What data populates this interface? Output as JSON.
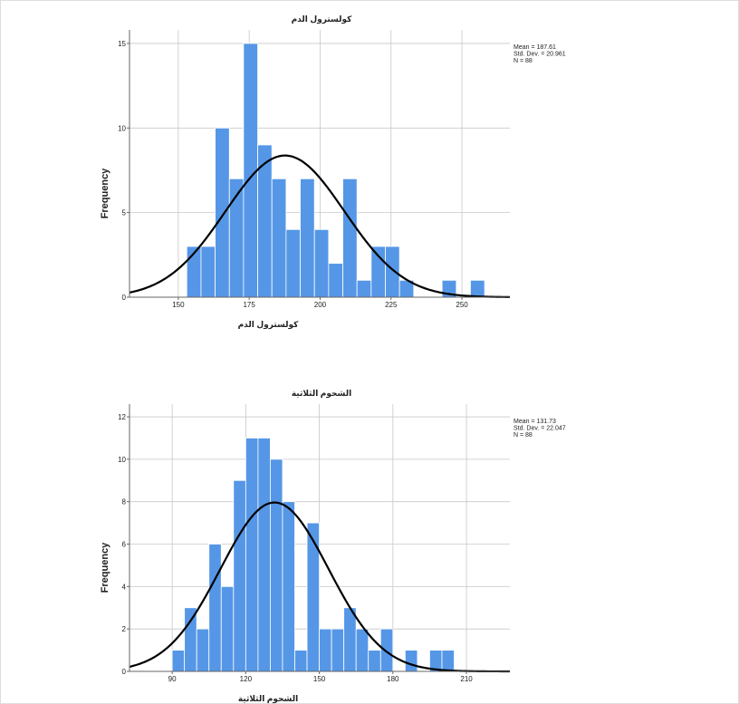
{
  "chart_data": [
    {
      "type": "histogram",
      "title": "كولسترول الدم",
      "x_label": "كولسترول الدم",
      "y_label": "Frequency",
      "bins": [
        153,
        158,
        163,
        168,
        173,
        178,
        183,
        188,
        193,
        198,
        203,
        208,
        213,
        218,
        223,
        228,
        233,
        238,
        243,
        248,
        253,
        258
      ],
      "values": [
        3,
        3,
        10,
        7,
        15,
        9,
        7,
        4,
        7,
        4,
        2,
        7,
        1,
        3,
        3,
        1,
        0,
        0,
        1,
        0,
        1
      ],
      "color": "#5597e6",
      "xlim": [
        132.8,
        266.9
      ],
      "xticks": [
        150,
        175,
        200,
        225,
        250
      ],
      "ylim": [
        0,
        15.8
      ],
      "yticks": [
        0,
        5,
        10,
        15
      ],
      "grid": true,
      "stats": [
        {
          "value": 187.61,
          "label": "Mean = 187.61"
        },
        {
          "value": 20.961,
          "label": "Std. Dev. = 20.961"
        },
        {
          "value": 88,
          "label": "N = 88"
        }
      ]
    },
    {
      "type": "histogram",
      "title": "الشحوم الثلاثية",
      "x_label": "الشحوم الثلاثية",
      "y_label": "Frequency",
      "bins": [
        90,
        95,
        100,
        105,
        110,
        115,
        120,
        125,
        130,
        135,
        140,
        145,
        150,
        155,
        160,
        165,
        170,
        175,
        180,
        185,
        190,
        195,
        200,
        205
      ],
      "values": [
        1,
        3,
        2,
        6,
        4,
        9,
        11,
        11,
        10,
        8,
        1,
        7,
        2,
        2,
        3,
        2,
        1,
        2,
        0,
        1,
        0,
        1,
        1
      ],
      "color": "#5597e6",
      "xlim": [
        72.6,
        227.7
      ],
      "xticks": [
        90,
        120,
        150,
        180,
        210
      ],
      "ylim": [
        0,
        12.6
      ],
      "yticks": [
        0,
        2,
        4,
        6,
        8,
        10,
        12
      ],
      "grid": true,
      "stats": [
        {
          "value": 131.73,
          "label": "Mean = 131.73"
        },
        {
          "value": 22.047,
          "label": "Std. Dev. = 22.047"
        },
        {
          "value": 88,
          "label": "N = 88"
        }
      ]
    }
  ]
}
